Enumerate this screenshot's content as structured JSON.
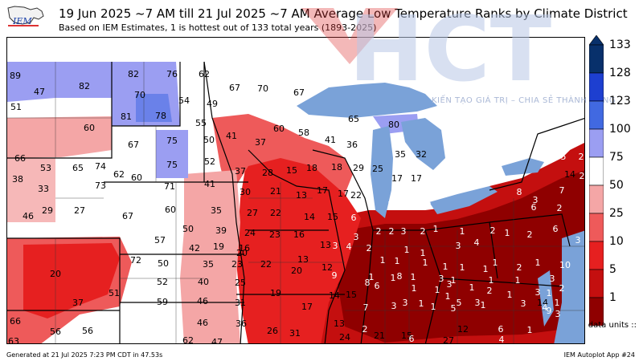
{
  "header": {
    "logo_text": "IEM",
    "title": "19 Jun 2025 ~7 AM till 21 Jul 2025 ~7 AM Average Low Temperature Ranks by Climate District",
    "subtitle": "Based on IEM Estimates, 1 is hottest out of 133 total years (1893-2025)"
  },
  "colorbar": {
    "ticks": [
      "133",
      "128",
      "123",
      "100",
      "75",
      "50",
      "25",
      "10",
      "5",
      "1"
    ],
    "colors": [
      "#08306b",
      "#1d3fd0",
      "#4169e1",
      "#9b9ef2",
      "#ffffff",
      "#f4a6a6",
      "#ee5a5a",
      "#e62020",
      "#c40f0f",
      "#8f0000"
    ]
  },
  "units_label": "data units ::",
  "footer": {
    "generated": "Generated at 21 Jul 2025 7:23 PM CDT in 47.53s",
    "app": "IEM Autoplot App #24"
  },
  "watermark": {
    "letters": "HCT",
    "slogan": "KIẾN TẠO GIÁ TRỊ – CHIA SẺ THÀNH CÔNG"
  },
  "map": {
    "lake_color": "#7aa2d8",
    "district_ranks": [
      {
        "v": "89"
      },
      {
        "v": "82"
      },
      {
        "v": "82"
      },
      {
        "v": "76"
      },
      {
        "v": "62"
      },
      {
        "v": "51"
      },
      {
        "v": "70"
      },
      {
        "v": "47"
      },
      {
        "v": "60"
      },
      {
        "v": "81"
      },
      {
        "v": "78"
      },
      {
        "v": "54"
      },
      {
        "v": "49"
      },
      {
        "v": "55"
      },
      {
        "v": "67"
      },
      {
        "v": "70"
      },
      {
        "v": "67"
      },
      {
        "v": "65"
      },
      {
        "v": "80"
      },
      {
        "v": "60"
      },
      {
        "v": "58"
      },
      {
        "v": "41"
      },
      {
        "v": "37"
      },
      {
        "v": "67"
      },
      {
        "v": "75"
      },
      {
        "v": "50"
      },
      {
        "v": "41"
      },
      {
        "v": "36"
      },
      {
        "v": "35"
      },
      {
        "v": "32"
      },
      {
        "v": "66"
      },
      {
        "v": "53"
      },
      {
        "v": "65"
      },
      {
        "v": "74"
      },
      {
        "v": "62"
      },
      {
        "v": "60"
      },
      {
        "v": "75"
      },
      {
        "v": "52"
      },
      {
        "v": "37"
      },
      {
        "v": "28"
      },
      {
        "v": "15"
      },
      {
        "v": "18"
      },
      {
        "v": "18"
      },
      {
        "v": "29"
      },
      {
        "v": "25"
      },
      {
        "v": "17"
      },
      {
        "v": "17"
      },
      {
        "v": "38"
      },
      {
        "v": "33"
      },
      {
        "v": "73"
      },
      {
        "v": "71"
      },
      {
        "v": "41"
      },
      {
        "v": "30"
      },
      {
        "v": "21"
      },
      {
        "v": "13"
      },
      {
        "v": "17"
      },
      {
        "v": "17"
      },
      {
        "v": "22"
      },
      {
        "v": "46"
      },
      {
        "v": "29"
      },
      {
        "v": "27"
      },
      {
        "v": "67"
      },
      {
        "v": "60"
      },
      {
        "v": "35"
      },
      {
        "v": "27"
      },
      {
        "v": "22"
      },
      {
        "v": "14"
      },
      {
        "v": "15"
      },
      {
        "v": "6"
      },
      {
        "v": "10"
      },
      {
        "v": "4"
      },
      {
        "v": "8"
      },
      {
        "v": "5"
      },
      {
        "v": "2"
      },
      {
        "v": "14"
      },
      {
        "v": "2"
      },
      {
        "v": "8"
      },
      {
        "v": "3"
      },
      {
        "v": "7"
      },
      {
        "v": "6"
      },
      {
        "v": "2"
      },
      {
        "v": "57"
      },
      {
        "v": "50"
      },
      {
        "v": "39"
      },
      {
        "v": "24"
      },
      {
        "v": "23"
      },
      {
        "v": "16"
      },
      {
        "v": "3"
      },
      {
        "v": "2"
      },
      {
        "v": "2"
      },
      {
        "v": "3"
      },
      {
        "v": "2"
      },
      {
        "v": "1"
      },
      {
        "v": "1"
      },
      {
        "v": "2"
      },
      {
        "v": "1"
      },
      {
        "v": "2"
      },
      {
        "v": "6"
      },
      {
        "v": "3"
      },
      {
        "v": "13"
      },
      {
        "v": "19"
      },
      {
        "v": "16"
      },
      {
        "v": "42"
      },
      {
        "v": "20"
      },
      {
        "v": "13"
      },
      {
        "v": "3"
      },
      {
        "v": "4"
      },
      {
        "v": "2"
      },
      {
        "v": "1"
      },
      {
        "v": "1"
      },
      {
        "v": "3"
      },
      {
        "v": "4"
      },
      {
        "v": "72"
      },
      {
        "v": "50"
      },
      {
        "v": "35"
      },
      {
        "v": "23"
      },
      {
        "v": "22"
      },
      {
        "v": "12"
      },
      {
        "v": "1"
      },
      {
        "v": "1"
      },
      {
        "v": "1"
      },
      {
        "v": "1"
      },
      {
        "v": "1"
      },
      {
        "v": "1"
      },
      {
        "v": "1"
      },
      {
        "v": "2"
      },
      {
        "v": "1"
      },
      {
        "v": "10"
      },
      {
        "v": "20"
      },
      {
        "v": "52"
      },
      {
        "v": "40"
      },
      {
        "v": "25"
      },
      {
        "v": "20"
      },
      {
        "v": "9"
      },
      {
        "v": "1"
      },
      {
        "v": "1"
      },
      {
        "v": "1"
      },
      {
        "v": "3"
      },
      {
        "v": "1"
      },
      {
        "v": "1"
      },
      {
        "v": "1"
      },
      {
        "v": "3"
      },
      {
        "v": "51"
      },
      {
        "v": "37"
      },
      {
        "v": "59"
      },
      {
        "v": "46"
      },
      {
        "v": "31"
      },
      {
        "v": "19"
      },
      {
        "v": "14"
      },
      {
        "v": "15"
      },
      {
        "v": "8"
      },
      {
        "v": "6"
      },
      {
        "v": "8"
      },
      {
        "v": "1"
      },
      {
        "v": "1"
      },
      {
        "v": "3"
      },
      {
        "v": "1"
      },
      {
        "v": "2"
      },
      {
        "v": "1"
      },
      {
        "v": "3"
      },
      {
        "v": "1"
      },
      {
        "v": "2"
      },
      {
        "v": "3"
      },
      {
        "v": "1"
      },
      {
        "v": "5"
      },
      {
        "v": "3"
      },
      {
        "v": "14"
      },
      {
        "v": "9"
      },
      {
        "v": "7"
      },
      {
        "v": "3"
      },
      {
        "v": "1"
      },
      {
        "v": "1"
      },
      {
        "v": "5"
      },
      {
        "v": "1"
      },
      {
        "v": "3"
      },
      {
        "v": "4"
      },
      {
        "v": "1"
      },
      {
        "v": "3"
      },
      {
        "v": "66"
      },
      {
        "v": "46"
      },
      {
        "v": "36"
      },
      {
        "v": "17"
      },
      {
        "v": "13"
      },
      {
        "v": "2"
      },
      {
        "v": "56"
      },
      {
        "v": "56"
      },
      {
        "v": "26"
      },
      {
        "v": "31"
      },
      {
        "v": "24"
      },
      {
        "v": "21"
      },
      {
        "v": "15"
      },
      {
        "v": "12"
      },
      {
        "v": "6"
      },
      {
        "v": "63"
      },
      {
        "v": "62"
      },
      {
        "v": "47"
      },
      {
        "v": "6"
      },
      {
        "v": "27"
      },
      {
        "v": "1"
      },
      {
        "v": "4"
      }
    ]
  }
}
